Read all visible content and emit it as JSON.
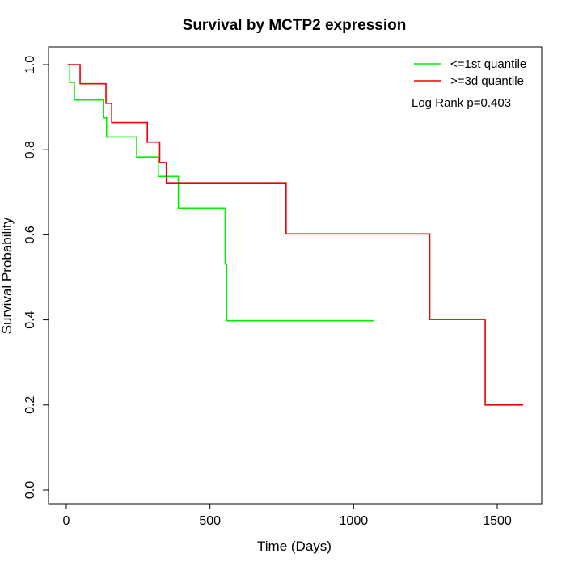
{
  "chart_data": {
    "type": "line",
    "title": "Survival by MCTP2 expression",
    "xlabel": "Time (Days)",
    "ylabel": "Survival Probability",
    "xlim": [
      0,
      1600
    ],
    "ylim": [
      0,
      1
    ],
    "x_ticks": [
      0,
      500,
      1000,
      1500
    ],
    "y_ticks": [
      0.0,
      0.2,
      0.4,
      0.6,
      0.8,
      1.0
    ],
    "x_tick_labels": [
      "0",
      "500",
      "1000",
      "1500"
    ],
    "y_tick_labels": [
      "0.0",
      "0.2",
      "0.4",
      "0.6",
      "0.8",
      "1.0"
    ],
    "grid": false,
    "legend_position": "top-right",
    "annotation": "Log Rank p=0.403",
    "series": [
      {
        "name": "<=1st quantile",
        "color": "#00ee00",
        "step": true,
        "x": [
          5,
          12,
          28,
          130,
          140,
          245,
          320,
          390,
          553,
          558,
          1070
        ],
        "y": [
          1.0,
          0.958,
          0.917,
          0.875,
          0.83,
          0.783,
          0.737,
          0.663,
          0.531,
          0.398,
          0.398
        ]
      },
      {
        "name": ">=3d quantile",
        "color": "#ee0000",
        "step": true,
        "x": [
          5,
          48,
          138,
          158,
          282,
          325,
          348,
          765,
          1265,
          1458,
          1590
        ],
        "y": [
          1.0,
          0.955,
          0.909,
          0.864,
          0.818,
          0.77,
          0.722,
          0.602,
          0.401,
          0.2,
          0.2
        ]
      }
    ]
  }
}
